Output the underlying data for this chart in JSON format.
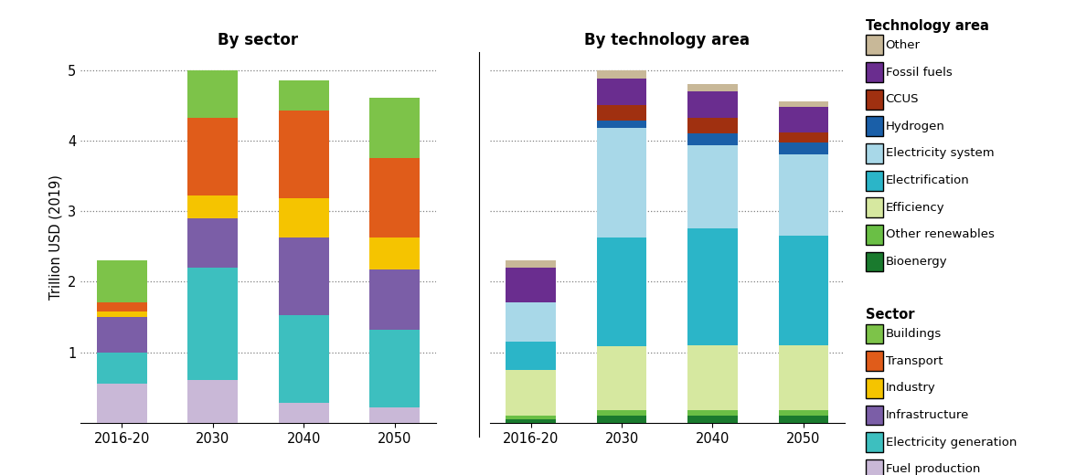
{
  "sector_categories": [
    "2016-20",
    "2030",
    "2040",
    "2050"
  ],
  "tech_categories": [
    "2016-20",
    "2030",
    "2040",
    "2050"
  ],
  "sector_layers": {
    "Fuel production": [
      0.55,
      0.6,
      0.28,
      0.22
    ],
    "Electricity generation": [
      0.45,
      1.6,
      1.25,
      1.1
    ],
    "Infrastructure": [
      0.5,
      0.7,
      1.1,
      0.85
    ],
    "Industry": [
      0.08,
      0.32,
      0.55,
      0.45
    ],
    "Transport": [
      0.12,
      1.1,
      1.25,
      1.13
    ],
    "Buildings": [
      0.6,
      0.68,
      0.42,
      0.85
    ]
  },
  "tech_layers": {
    "Bioenergy": [
      0.05,
      0.1,
      0.1,
      0.1
    ],
    "Other renewables": [
      0.05,
      0.08,
      0.08,
      0.08
    ],
    "Efficiency": [
      0.65,
      0.9,
      0.92,
      0.92
    ],
    "Electrification": [
      0.4,
      1.55,
      1.65,
      1.55
    ],
    "Electricity system": [
      0.55,
      1.55,
      1.18,
      1.15
    ],
    "Hydrogen": [
      0.0,
      0.1,
      0.17,
      0.17
    ],
    "CCUS": [
      0.0,
      0.22,
      0.22,
      0.15
    ],
    "Fossil fuels": [
      0.5,
      0.38,
      0.38,
      0.35
    ],
    "Other": [
      0.1,
      0.12,
      0.1,
      0.08
    ]
  },
  "sector_colors": {
    "Fuel production": "#c9b8d7",
    "Electricity generation": "#3dbfbf",
    "Infrastructure": "#7b5ea7",
    "Industry": "#f5c400",
    "Transport": "#e05c1a",
    "Buildings": "#7dc349"
  },
  "tech_colors": {
    "Bioenergy": "#1a7a2e",
    "Other renewables": "#6abf45",
    "Efficiency": "#d6e8a0",
    "Electrification": "#2bb5c8",
    "Electricity system": "#a8d8e8",
    "Hydrogen": "#1a5fa8",
    "CCUS": "#a03010",
    "Fossil fuels": "#6a2d8f",
    "Other": "#c8b898"
  },
  "sector_order": [
    "Fuel production",
    "Electricity generation",
    "Infrastructure",
    "Industry",
    "Transport",
    "Buildings"
  ],
  "tech_order": [
    "Bioenergy",
    "Other renewables",
    "Efficiency",
    "Electrification",
    "Electricity system",
    "Hydrogen",
    "CCUS",
    "Fossil fuels",
    "Other"
  ],
  "ylabel": "Trillion USD (2019)",
  "ylim": [
    0,
    5.25
  ],
  "yticks": [
    1,
    2,
    3,
    4,
    5
  ],
  "title_sector": "By sector",
  "title_tech": "By technology area",
  "legend_tech_title": "Technology area",
  "legend_sector_title": "Sector",
  "legend_tech_order": [
    "Other",
    "Fossil fuels",
    "CCUS",
    "Hydrogen",
    "Electricity system",
    "Electrification",
    "Efficiency",
    "Other renewables",
    "Bioenergy"
  ],
  "legend_sector_order": [
    "Buildings",
    "Transport",
    "Industry",
    "Infrastructure",
    "Electricity generation",
    "Fuel production"
  ],
  "background_color": "#ffffff"
}
